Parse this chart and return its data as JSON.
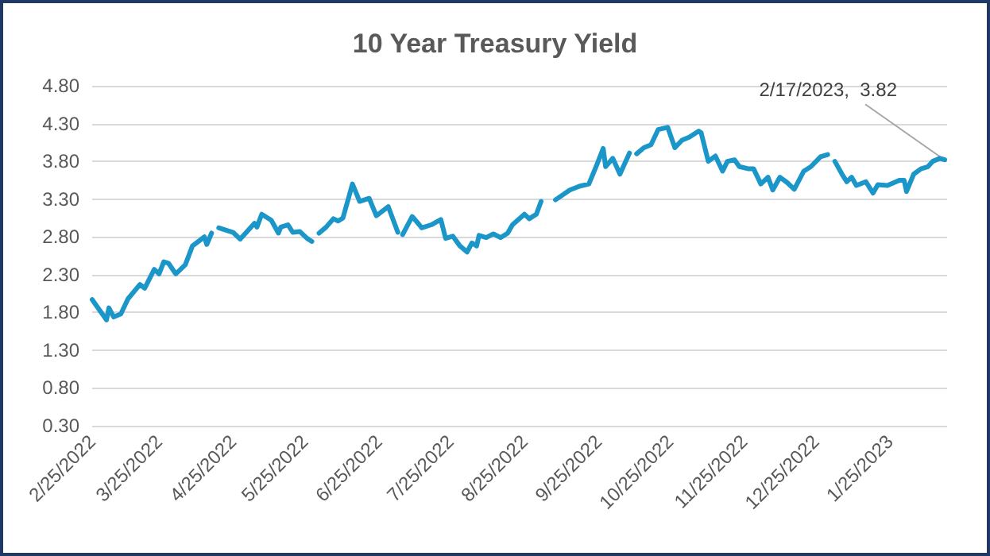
{
  "chart_data": {
    "type": "line",
    "title": "10 Year Treasury Yield",
    "x": [
      "2022-02-25",
      "2022-03-03",
      "2022-03-04",
      "2022-03-06",
      "2022-03-09",
      "2022-03-12",
      "2022-03-17",
      "2022-03-19",
      "2022-03-23",
      "2022-03-25",
      "2022-03-27",
      "2022-03-29",
      "2022-04-01",
      "2022-04-05",
      "2022-04-08",
      "2022-04-13",
      "2022-04-14",
      "2022-04-16",
      "2022-04-17",
      "2022-04-19",
      "2022-04-25",
      "2022-04-28",
      "2022-05-04",
      "2022-05-05",
      "2022-05-07",
      "2022-05-11",
      "2022-05-14",
      "2022-05-15",
      "2022-05-18",
      "2022-05-20",
      "2022-05-23",
      "2022-05-26",
      "2022-05-28",
      "2022-05-29",
      "2022-05-31",
      "2022-06-03",
      "2022-06-06",
      "2022-06-08",
      "2022-06-10",
      "2022-06-14",
      "2022-06-17",
      "2022-06-21",
      "2022-06-24",
      "2022-06-29",
      "2022-07-03",
      "2022-07-04",
      "2022-07-05",
      "2022-07-09",
      "2022-07-12",
      "2022-07-13",
      "2022-07-17",
      "2022-07-21",
      "2022-07-23",
      "2022-07-26",
      "2022-07-29",
      "2022-08-01",
      "2022-08-03",
      "2022-08-05",
      "2022-08-06",
      "2022-08-09",
      "2022-08-12",
      "2022-08-15",
      "2022-08-18",
      "2022-08-20",
      "2022-08-25",
      "2022-08-27",
      "2022-08-30",
      "2022-09-01",
      "2022-09-03",
      "2022-09-07",
      "2022-09-13",
      "2022-09-17",
      "2022-09-21",
      "2022-09-24",
      "2022-09-27",
      "2022-09-28",
      "2022-10-01",
      "2022-10-04",
      "2022-10-08",
      "2022-10-09",
      "2022-10-11",
      "2022-10-14",
      "2022-10-17",
      "2022-10-20",
      "2022-10-24",
      "2022-10-27",
      "2022-10-30",
      "2022-11-02",
      "2022-11-06",
      "2022-11-07",
      "2022-11-10",
      "2022-11-13",
      "2022-11-16",
      "2022-11-18",
      "2022-11-21",
      "2022-11-23",
      "2022-11-27",
      "2022-11-29",
      "2022-12-02",
      "2022-12-05",
      "2022-12-07",
      "2022-12-10",
      "2022-12-13",
      "2022-12-16",
      "2022-12-20",
      "2022-12-23",
      "2022-12-27",
      "2022-12-30",
      "2022-12-31",
      "2023-01-02",
      "2023-01-05",
      "2023-01-07",
      "2023-01-09",
      "2023-01-11",
      "2023-01-15",
      "2023-01-18",
      "2023-01-20",
      "2023-01-24",
      "2023-01-29",
      "2023-01-31",
      "2023-02-01",
      "2023-02-04",
      "2023-02-07",
      "2023-02-10",
      "2023-02-12",
      "2023-02-15",
      "2023-02-17"
    ],
    "series": [
      {
        "color": "#1a96c8",
        "values": [
          1.97,
          1.7,
          1.86,
          1.74,
          1.78,
          1.98,
          2.17,
          2.12,
          2.37,
          2.31,
          2.47,
          2.45,
          2.31,
          2.43,
          2.68,
          2.8,
          2.7,
          2.85,
          null,
          2.92,
          2.86,
          2.77,
          2.98,
          2.93,
          3.1,
          3.02,
          2.85,
          2.93,
          2.96,
          2.86,
          2.87,
          2.78,
          2.74,
          null,
          2.85,
          2.93,
          3.04,
          3.01,
          3.05,
          3.5,
          3.27,
          3.31,
          3.08,
          3.2,
          2.86,
          null,
          2.83,
          3.07,
          2.96,
          2.92,
          2.96,
          3.03,
          2.78,
          2.81,
          2.68,
          2.6,
          2.72,
          2.68,
          2.82,
          2.79,
          2.84,
          2.79,
          2.85,
          2.96,
          3.1,
          3.04,
          3.1,
          3.27,
          null,
          3.29,
          3.42,
          3.47,
          3.5,
          3.73,
          3.97,
          3.73,
          3.84,
          3.63,
          3.91,
          null,
          3.9,
          3.98,
          4.02,
          4.22,
          4.25,
          3.98,
          4.08,
          4.12,
          4.2,
          4.18,
          3.8,
          3.87,
          3.67,
          3.8,
          3.82,
          3.73,
          3.7,
          3.7,
          3.5,
          3.59,
          3.42,
          3.59,
          3.52,
          3.43,
          3.67,
          3.73,
          3.86,
          3.89,
          null,
          3.8,
          3.63,
          3.53,
          3.59,
          3.48,
          3.53,
          3.38,
          3.49,
          3.48,
          3.55,
          3.55,
          3.4,
          3.63,
          3.7,
          3.73,
          3.8,
          3.84,
          3.82
        ]
      }
    ],
    "xlim": [
      "2022-02-25",
      "2023-02-18"
    ],
    "xticks": [
      {
        "value": "2022-02-25",
        "label": "2/25/2022"
      },
      {
        "value": "2022-03-25",
        "label": "3/25/2022"
      },
      {
        "value": "2022-04-25",
        "label": "4/25/2022"
      },
      {
        "value": "2022-05-25",
        "label": "5/25/2022"
      },
      {
        "value": "2022-06-25",
        "label": "6/25/2022"
      },
      {
        "value": "2022-07-25",
        "label": "7/25/2022"
      },
      {
        "value": "2022-08-25",
        "label": "8/25/2022"
      },
      {
        "value": "2022-09-25",
        "label": "9/25/2022"
      },
      {
        "value": "2022-10-25",
        "label": "10/25/2022"
      },
      {
        "value": "2022-11-25",
        "label": "11/25/2022"
      },
      {
        "value": "2022-12-25",
        "label": "12/25/2022"
      },
      {
        "value": "2023-01-25",
        "label": "1/25/2023"
      }
    ],
    "ylim": [
      0.3,
      4.8
    ],
    "yticks": [
      {
        "value": 0.3,
        "label": "0.30"
      },
      {
        "value": 0.8,
        "label": "0.80"
      },
      {
        "value": 1.3,
        "label": "1.30"
      },
      {
        "value": 1.8,
        "label": "1.80"
      },
      {
        "value": 2.3,
        "label": "2.30"
      },
      {
        "value": 2.8,
        "label": "2.80"
      },
      {
        "value": 3.3,
        "label": "3.30"
      },
      {
        "value": 3.8,
        "label": "3.80"
      },
      {
        "value": 4.3,
        "label": "4.30"
      },
      {
        "value": 4.8,
        "label": "4.80"
      }
    ],
    "annotations": [
      {
        "text": "2/17/2023,  3.82",
        "x": "2023-02-17",
        "y": 3.82
      }
    ],
    "grid": "y",
    "marker": "none",
    "line_style": "solid"
  }
}
